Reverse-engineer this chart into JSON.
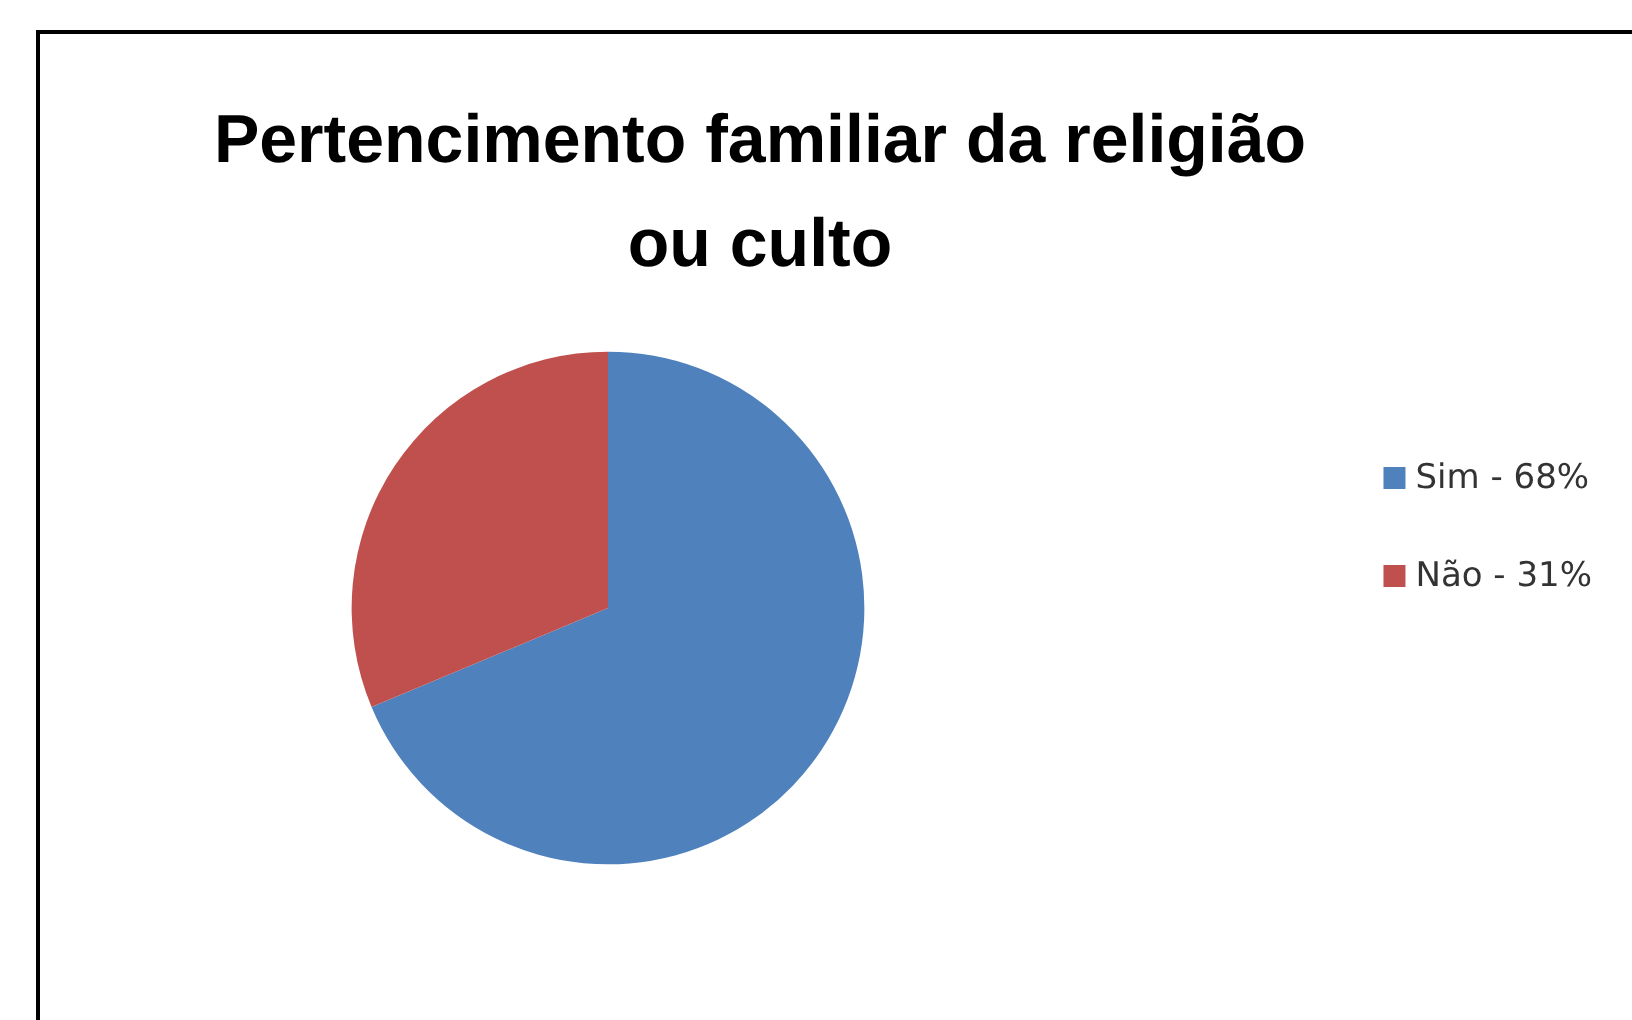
{
  "chart_data": {
    "type": "pie",
    "title": "Pertencimento familiar da religião\nou culto",
    "categories": [
      "Sim - 68%",
      "Não - 31%"
    ],
    "values": [
      68,
      31
    ],
    "colors": [
      "#4f81bd",
      "#c0504d"
    ],
    "legend": "right"
  }
}
